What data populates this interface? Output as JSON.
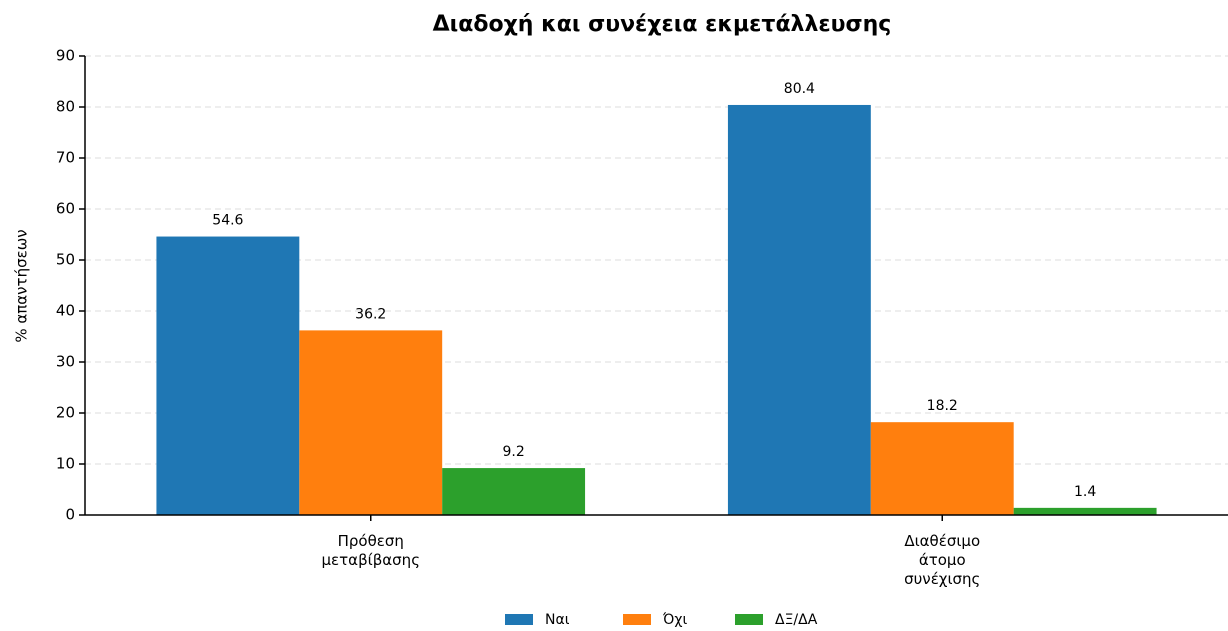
{
  "chart_data": {
    "type": "bar",
    "title": "Διαδοχή και συνέχεια εκμετάλλευσης",
    "ylabel": "% απαντήσεων",
    "categories": [
      "Πρόθεση\nμεταβίβασης",
      "Διαθέσιμο\nάτομο\nσυνέχισης"
    ],
    "series": [
      {
        "name": "Ναι",
        "color": "#1f77b4",
        "values": [
          54.6,
          80.4
        ]
      },
      {
        "name": "Όχι",
        "color": "#ff7f0e",
        "values": [
          36.2,
          18.2
        ]
      },
      {
        "name": "ΔΞ/ΔΑ",
        "color": "#2ca02c",
        "values": [
          9.2,
          1.4
        ]
      }
    ],
    "ylim": [
      0,
      90
    ],
    "yticks": [
      0,
      10,
      20,
      30,
      40,
      50,
      60,
      70,
      80,
      90
    ],
    "grid": true,
    "legend": "bottom"
  }
}
